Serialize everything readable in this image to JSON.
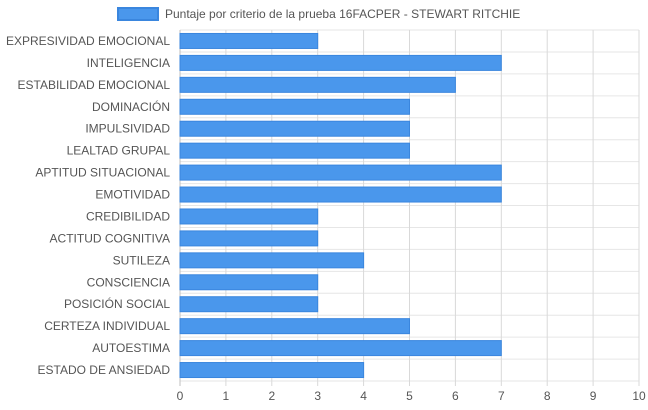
{
  "chart_data": {
    "type": "bar",
    "orientation": "horizontal",
    "categories": [
      "EXPRESIVIDAD EMOCIONAL",
      "INTELIGENCIA",
      "ESTABILIDAD EMOCIONAL",
      "DOMINACIÓN",
      "IMPULSIVIDAD",
      "LEALTAD GRUPAL",
      "APTITUD SITUACIONAL",
      "EMOTIVIDAD",
      "CREDIBILIDAD",
      "ACTITUD COGNITIVA",
      "SUTILEZA",
      "CONSCIENCIA",
      "POSICIÓN SOCIAL",
      "CERTEZA INDIVIDUAL",
      "AUTOESTIMA",
      "ESTADO DE ANSIEDAD"
    ],
    "series": [
      {
        "name": "Puntaje por criterio de la prueba 16FACPER - STEWART RITCHIE",
        "values": [
          3,
          7,
          6,
          5,
          5,
          5,
          7,
          7,
          3,
          3,
          4,
          3,
          3,
          5,
          7,
          4
        ]
      }
    ],
    "x_ticks": [
      "0",
      "1",
      "2",
      "3",
      "4",
      "5",
      "6",
      "7",
      "8",
      "9",
      "10"
    ],
    "xlim": [
      0,
      10
    ],
    "xlabel": "",
    "ylabel": "",
    "title": "",
    "legend_position": "top",
    "grid": true,
    "colors": {
      "bar_fill": "#4a97ec",
      "bar_stroke": "#3a86de",
      "grid": "#d9d9d9",
      "axis": "#bfbfbf",
      "text": "#555555"
    }
  }
}
